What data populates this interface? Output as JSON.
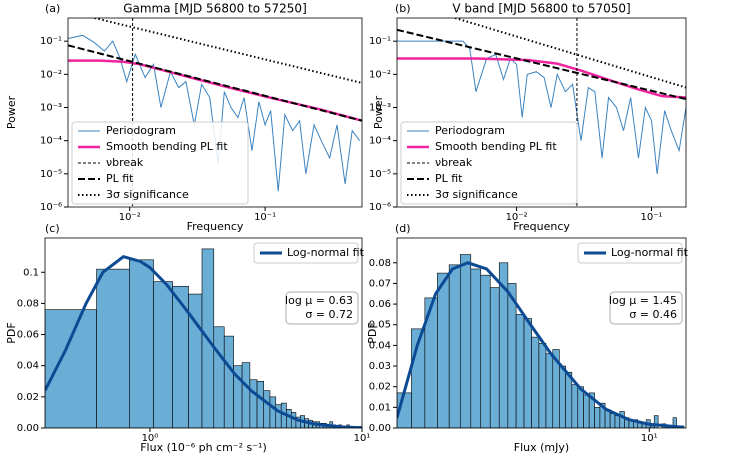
{
  "chart_data": [
    {
      "type": "line",
      "panel": "(a)",
      "title": "Gamma [MJD 56800 to 57250]",
      "xlabel": "Frequency",
      "ylabel": "Power",
      "xscale": "log",
      "yscale": "log",
      "xlim": [
        0.0035,
        0.52
      ],
      "ylim": [
        1e-06,
        0.5
      ],
      "xticks": [
        {
          "value": 0.01,
          "label": "10⁻²"
        },
        {
          "value": 0.1,
          "label": "10⁻¹"
        }
      ],
      "yticks": [
        {
          "value": 0.1,
          "label": "10⁻¹"
        },
        {
          "value": 0.01,
          "label": "10⁻²"
        },
        {
          "value": 0.001,
          "label": "10⁻³"
        },
        {
          "value": 0.0001,
          "label": "10⁻⁴"
        },
        {
          "value": 1e-05,
          "label": "10⁻⁵"
        },
        {
          "value": 1e-06,
          "label": "10⁻⁶"
        }
      ],
      "legend": "lower left",
      "series": [
        {
          "name": "Periodogram",
          "color": "#3a83c1",
          "style": "solid",
          "width": 1,
          "x": [
            0.0035,
            0.0045,
            0.0055,
            0.0065,
            0.0075,
            0.0085,
            0.0095,
            0.011,
            0.013,
            0.015,
            0.017,
            0.02,
            0.023,
            0.026,
            0.03,
            0.034,
            0.039,
            0.045,
            0.05,
            0.056,
            0.063,
            0.07,
            0.08,
            0.09,
            0.1,
            0.11,
            0.125,
            0.14,
            0.16,
            0.18,
            0.2,
            0.23,
            0.26,
            0.3,
            0.34,
            0.39,
            0.44,
            0.5
          ],
          "values": [
            0.12,
            0.15,
            0.09,
            0.05,
            0.1,
            0.03,
            0.006,
            0.04,
            0.008,
            0.02,
            0.001,
            0.012,
            0.004,
            0.006,
            0.0003,
            0.005,
            0.002,
            2e-05,
            0.003,
            0.001,
            0.0005,
            0.002,
            5e-05,
            0.0015,
            0.0003,
            0.0008,
            3e-06,
            0.0006,
            0.0002,
            0.0004,
            1e-05,
            0.0003,
            0.0001,
            3e-05,
            0.0003,
            5e-06,
            0.0002,
            0.0001
          ]
        },
        {
          "name": "Smooth bending PL fit",
          "color": "#f0249f",
          "style": "solid",
          "width": 2.5,
          "x": [
            0.0035,
            0.006,
            0.009,
            0.012,
            0.018,
            0.03,
            0.06,
            0.12,
            0.25,
            0.52
          ],
          "values": [
            0.026,
            0.026,
            0.024,
            0.02,
            0.013,
            0.0075,
            0.0036,
            0.0018,
            0.0009,
            0.0004
          ]
        },
        {
          "name": "νbreak",
          "color": "#000000",
          "style": "vline",
          "width": 1,
          "x": [
            0.0105
          ]
        },
        {
          "name": "PL fit",
          "color": "#000000",
          "style": "dashed",
          "width": 2,
          "x": [
            0.0035,
            0.52
          ],
          "values": [
            0.075,
            0.0004
          ]
        },
        {
          "name": "3σ significance",
          "color": "#000000",
          "style": "dotted",
          "width": 2,
          "x": [
            0.0055,
            0.52
          ],
          "values": [
            0.5,
            0.0055
          ]
        }
      ]
    },
    {
      "type": "line",
      "panel": "(b)",
      "title": "V band [MJD 56800 to 57050]",
      "xlabel": "Frequency",
      "ylabel": "Power",
      "xscale": "log",
      "yscale": "log",
      "xlim": [
        0.0013,
        0.18
      ],
      "ylim": [
        1e-06,
        0.5
      ],
      "xticks": [
        {
          "value": 0.01,
          "label": "10⁻²"
        },
        {
          "value": 0.1,
          "label": "10⁻¹"
        }
      ],
      "yticks": [
        {
          "value": 0.1,
          "label": "10⁻¹"
        },
        {
          "value": 0.01,
          "label": "10⁻²"
        },
        {
          "value": 0.001,
          "label": "10⁻³"
        },
        {
          "value": 0.0001,
          "label": "10⁻⁴"
        },
        {
          "value": 1e-05,
          "label": "10⁻⁵"
        },
        {
          "value": 1e-06,
          "label": "10⁻⁶"
        }
      ],
      "legend": "lower left",
      "series": [
        {
          "name": "Periodogram",
          "color": "#3a83c1",
          "style": "solid",
          "width": 1,
          "x": [
            0.0013,
            0.002,
            0.003,
            0.004,
            0.0045,
            0.005,
            0.006,
            0.007,
            0.008,
            0.009,
            0.01,
            0.011,
            0.012,
            0.014,
            0.016,
            0.018,
            0.02,
            0.023,
            0.026,
            0.03,
            0.034,
            0.038,
            0.043,
            0.048,
            0.055,
            0.062,
            0.07,
            0.08,
            0.09,
            0.1,
            0.11,
            0.125,
            0.14,
            0.16,
            0.18
          ],
          "values": [
            0.1,
            0.1,
            0.1,
            0.1,
            0.06,
            0.003,
            0.03,
            0.04,
            0.007,
            0.03,
            0.02,
            0.0005,
            0.01,
            0.012,
            0.008,
            0.001,
            0.01,
            0.003,
            0.005,
            0.0001,
            0.004,
            0.003,
            3e-05,
            0.002,
            0.001,
            0.0002,
            0.002,
            3e-05,
            0.001,
            0.0004,
            1e-05,
            0.0008,
            0.0002,
            5e-05,
            0.001
          ]
        },
        {
          "name": "Smooth bending PL fit",
          "color": "#f0249f",
          "style": "solid",
          "width": 2.5,
          "x": [
            0.0013,
            0.005,
            0.012,
            0.02,
            0.03,
            0.05,
            0.08,
            0.12,
            0.18
          ],
          "values": [
            0.03,
            0.03,
            0.027,
            0.021,
            0.013,
            0.0065,
            0.0035,
            0.0022,
            0.002
          ]
        },
        {
          "name": "νbreak",
          "color": "#000000",
          "style": "vline",
          "width": 1,
          "x": [
            0.028
          ]
        },
        {
          "name": "PL fit",
          "color": "#000000",
          "style": "dashed",
          "width": 2,
          "x": [
            0.0013,
            0.18
          ],
          "values": [
            0.22,
            0.0018
          ]
        },
        {
          "name": "3σ significance",
          "color": "#000000",
          "style": "dotted",
          "width": 2,
          "x": [
            0.0035,
            0.18
          ],
          "values": [
            0.5,
            0.004
          ]
        }
      ]
    },
    {
      "type": "histogram",
      "panel": "(c)",
      "xlabel": "Flux (10⁻⁶ ph cm⁻² s⁻¹)",
      "ylabel": "PDF",
      "xscale": "log",
      "yscale": "linear",
      "xlim": [
        0.32,
        10
      ],
      "ylim": [
        0,
        0.122
      ],
      "xticks": [
        {
          "value": 1,
          "label": "10⁰"
        },
        {
          "value": 10,
          "label": "10¹"
        }
      ],
      "yticks": [
        {
          "value": 0,
          "label": "0.00"
        },
        {
          "value": 0.02,
          "label": "0.02"
        },
        {
          "value": 0.04,
          "label": "0.04"
        },
        {
          "value": 0.06,
          "label": "0.06"
        },
        {
          "value": 0.08,
          "label": "0.08"
        },
        0.1
      ],
      "yticks_labels_fix": null,
      "color": "#6aaed6",
      "legend": "upper right",
      "bins": [
        0.32,
        0.56,
        0.8,
        1.04,
        1.28,
        1.52,
        1.76,
        2.0,
        2.24,
        2.48,
        2.72,
        2.96,
        3.2,
        3.44,
        3.68,
        3.92,
        4.16,
        4.4,
        4.64,
        4.88,
        5.12,
        5.36,
        5.6,
        5.84,
        6.08,
        6.32,
        6.56,
        6.8,
        7.04,
        7.28,
        7.52,
        7.76,
        8.0,
        8.24,
        8.48,
        8.72,
        8.96,
        9.2,
        9.44,
        9.68,
        9.92
      ],
      "values": [
        0.076,
        0.102,
        0.108,
        0.094,
        0.091,
        0.086,
        0.115,
        0.065,
        0.059,
        0.04,
        0.042,
        0.031,
        0.03,
        0.024,
        0.02,
        0.015,
        0.016,
        0.012,
        0.01,
        0.007,
        0.008,
        0.006,
        0.005,
        0.004,
        0.004,
        0.003,
        0.003,
        0.002,
        0.004,
        0.002,
        0.001,
        0.002,
        0.001,
        0.001,
        0.002,
        0,
        0.001,
        0.001,
        0,
        0.001
      ],
      "fit": {
        "name": "Log-normal fit",
        "color": "#0d4a94",
        "x": [
          0.32,
          0.4,
          0.5,
          0.6,
          0.75,
          0.9,
          1.0,
          1.2,
          1.5,
          2,
          2.5,
          3,
          4,
          5,
          6,
          8,
          10
        ],
        "values": [
          0.024,
          0.05,
          0.08,
          0.1,
          0.11,
          0.107,
          0.103,
          0.092,
          0.075,
          0.052,
          0.035,
          0.024,
          0.011,
          0.005,
          0.0025,
          0.0007,
          0.0002
        ]
      },
      "annotation": [
        "log μ =  0.63",
        "σ =  0.72"
      ]
    },
    {
      "type": "histogram",
      "panel": "(d)",
      "xlabel": "Flux (mJy)",
      "ylabel": "PDF",
      "xscale": "log",
      "yscale": "linear",
      "xlim": [
        2.7,
        12.1
      ],
      "ylim": [
        0,
        0.092
      ],
      "xticks": [
        {
          "value": 10,
          "label": "10¹"
        }
      ],
      "yticks": [
        {
          "value": 0,
          "label": "0.00"
        },
        {
          "value": 0.01,
          "label": "0.01"
        },
        {
          "value": 0.02,
          "label": "0.02"
        },
        {
          "value": 0.03,
          "label": "0.03"
        },
        {
          "value": 0.04,
          "label": "0.04"
        },
        {
          "value": 0.05,
          "label": "0.05"
        },
        {
          "value": 0.06,
          "label": "0.06"
        },
        {
          "value": 0.07,
          "label": "0.07"
        },
        {
          "value": 0.08,
          "label": "0.08"
        }
      ],
      "color": "#6aaed6",
      "legend": "upper right",
      "bins": [
        2.7,
        2.91,
        3.12,
        3.33,
        3.54,
        3.75,
        3.96,
        4.17,
        4.38,
        4.59,
        4.8,
        5.01,
        5.22,
        5.43,
        5.64,
        5.85,
        6.06,
        6.27,
        6.48,
        6.69,
        6.9,
        7.11,
        7.32,
        7.53,
        7.74,
        7.95,
        8.16,
        8.37,
        8.58,
        8.79,
        9.0,
        9.21,
        9.42,
        9.63,
        9.84,
        10.05,
        10.26,
        10.47,
        10.68,
        10.89,
        11.1,
        11.31,
        11.52,
        11.73,
        11.94,
        12.15
      ],
      "values": [
        0.017,
        0.048,
        0.063,
        0.075,
        0.079,
        0.084,
        0.077,
        0.074,
        0.068,
        0.08,
        0.07,
        0.055,
        0.053,
        0.044,
        0.041,
        0.036,
        0.038,
        0.03,
        0.027,
        0.021,
        0.02,
        0.016,
        0.017,
        0.01,
        0.012,
        0.009,
        0.007,
        0.006,
        0.008,
        0.005,
        0.004,
        0.004,
        0.003,
        0.002,
        0.004,
        0.001,
        0.006,
        0,
        0.002,
        0.001,
        0,
        0.005,
        0,
        0.001,
        0
      ],
      "fit": {
        "name": "Log-normal fit",
        "color": "#0d4a94",
        "x": [
          2.7,
          3.0,
          3.3,
          3.6,
          3.9,
          4.3,
          4.8,
          5.4,
          6,
          7,
          8,
          9,
          10,
          12
        ],
        "values": [
          0.005,
          0.04,
          0.065,
          0.077,
          0.08,
          0.077,
          0.066,
          0.05,
          0.036,
          0.019,
          0.009,
          0.004,
          0.0018,
          0.0003
        ]
      },
      "annotation": [
        "log μ =  1.45",
        "σ =  0.46"
      ]
    }
  ]
}
